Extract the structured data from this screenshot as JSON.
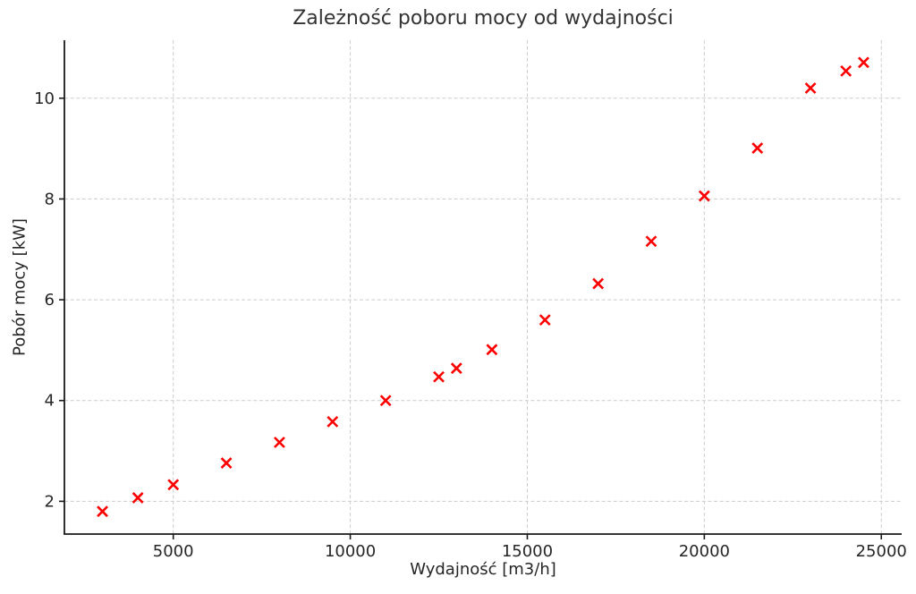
{
  "chart_data": {
    "type": "scatter",
    "title": "Zależność poboru mocy od wydajności",
    "xlabel": "Wydajność [m3/h]",
    "ylabel": "Pobór mocy [kW]",
    "x": [
      3000,
      4000,
      5000,
      6500,
      8000,
      9500,
      11000,
      12500,
      13000,
      14000,
      15500,
      17000,
      18500,
      20000,
      21500,
      23000,
      24000,
      24500
    ],
    "y": [
      1.8,
      2.07,
      2.33,
      2.76,
      3.17,
      3.58,
      4.0,
      4.47,
      4.64,
      5.01,
      5.6,
      6.32,
      7.16,
      8.06,
      9.01,
      10.2,
      10.54,
      10.71
    ],
    "xlim": [
      1925,
      25575
    ],
    "ylim": [
      1.35,
      11.15
    ],
    "xticks": [
      5000,
      10000,
      15000,
      20000,
      25000
    ],
    "yticks": [
      2,
      4,
      6,
      8,
      10
    ],
    "grid": true,
    "grid_style": "dashed",
    "legend": "none",
    "marker": {
      "style": "x",
      "color": "#ff0000",
      "size": 11,
      "stroke_width": 2.6
    },
    "colors": {
      "background": "#ffffff",
      "grid": "#cccccc",
      "axis": "#1a1a1a",
      "text": "#262626",
      "title": "#333333"
    }
  }
}
